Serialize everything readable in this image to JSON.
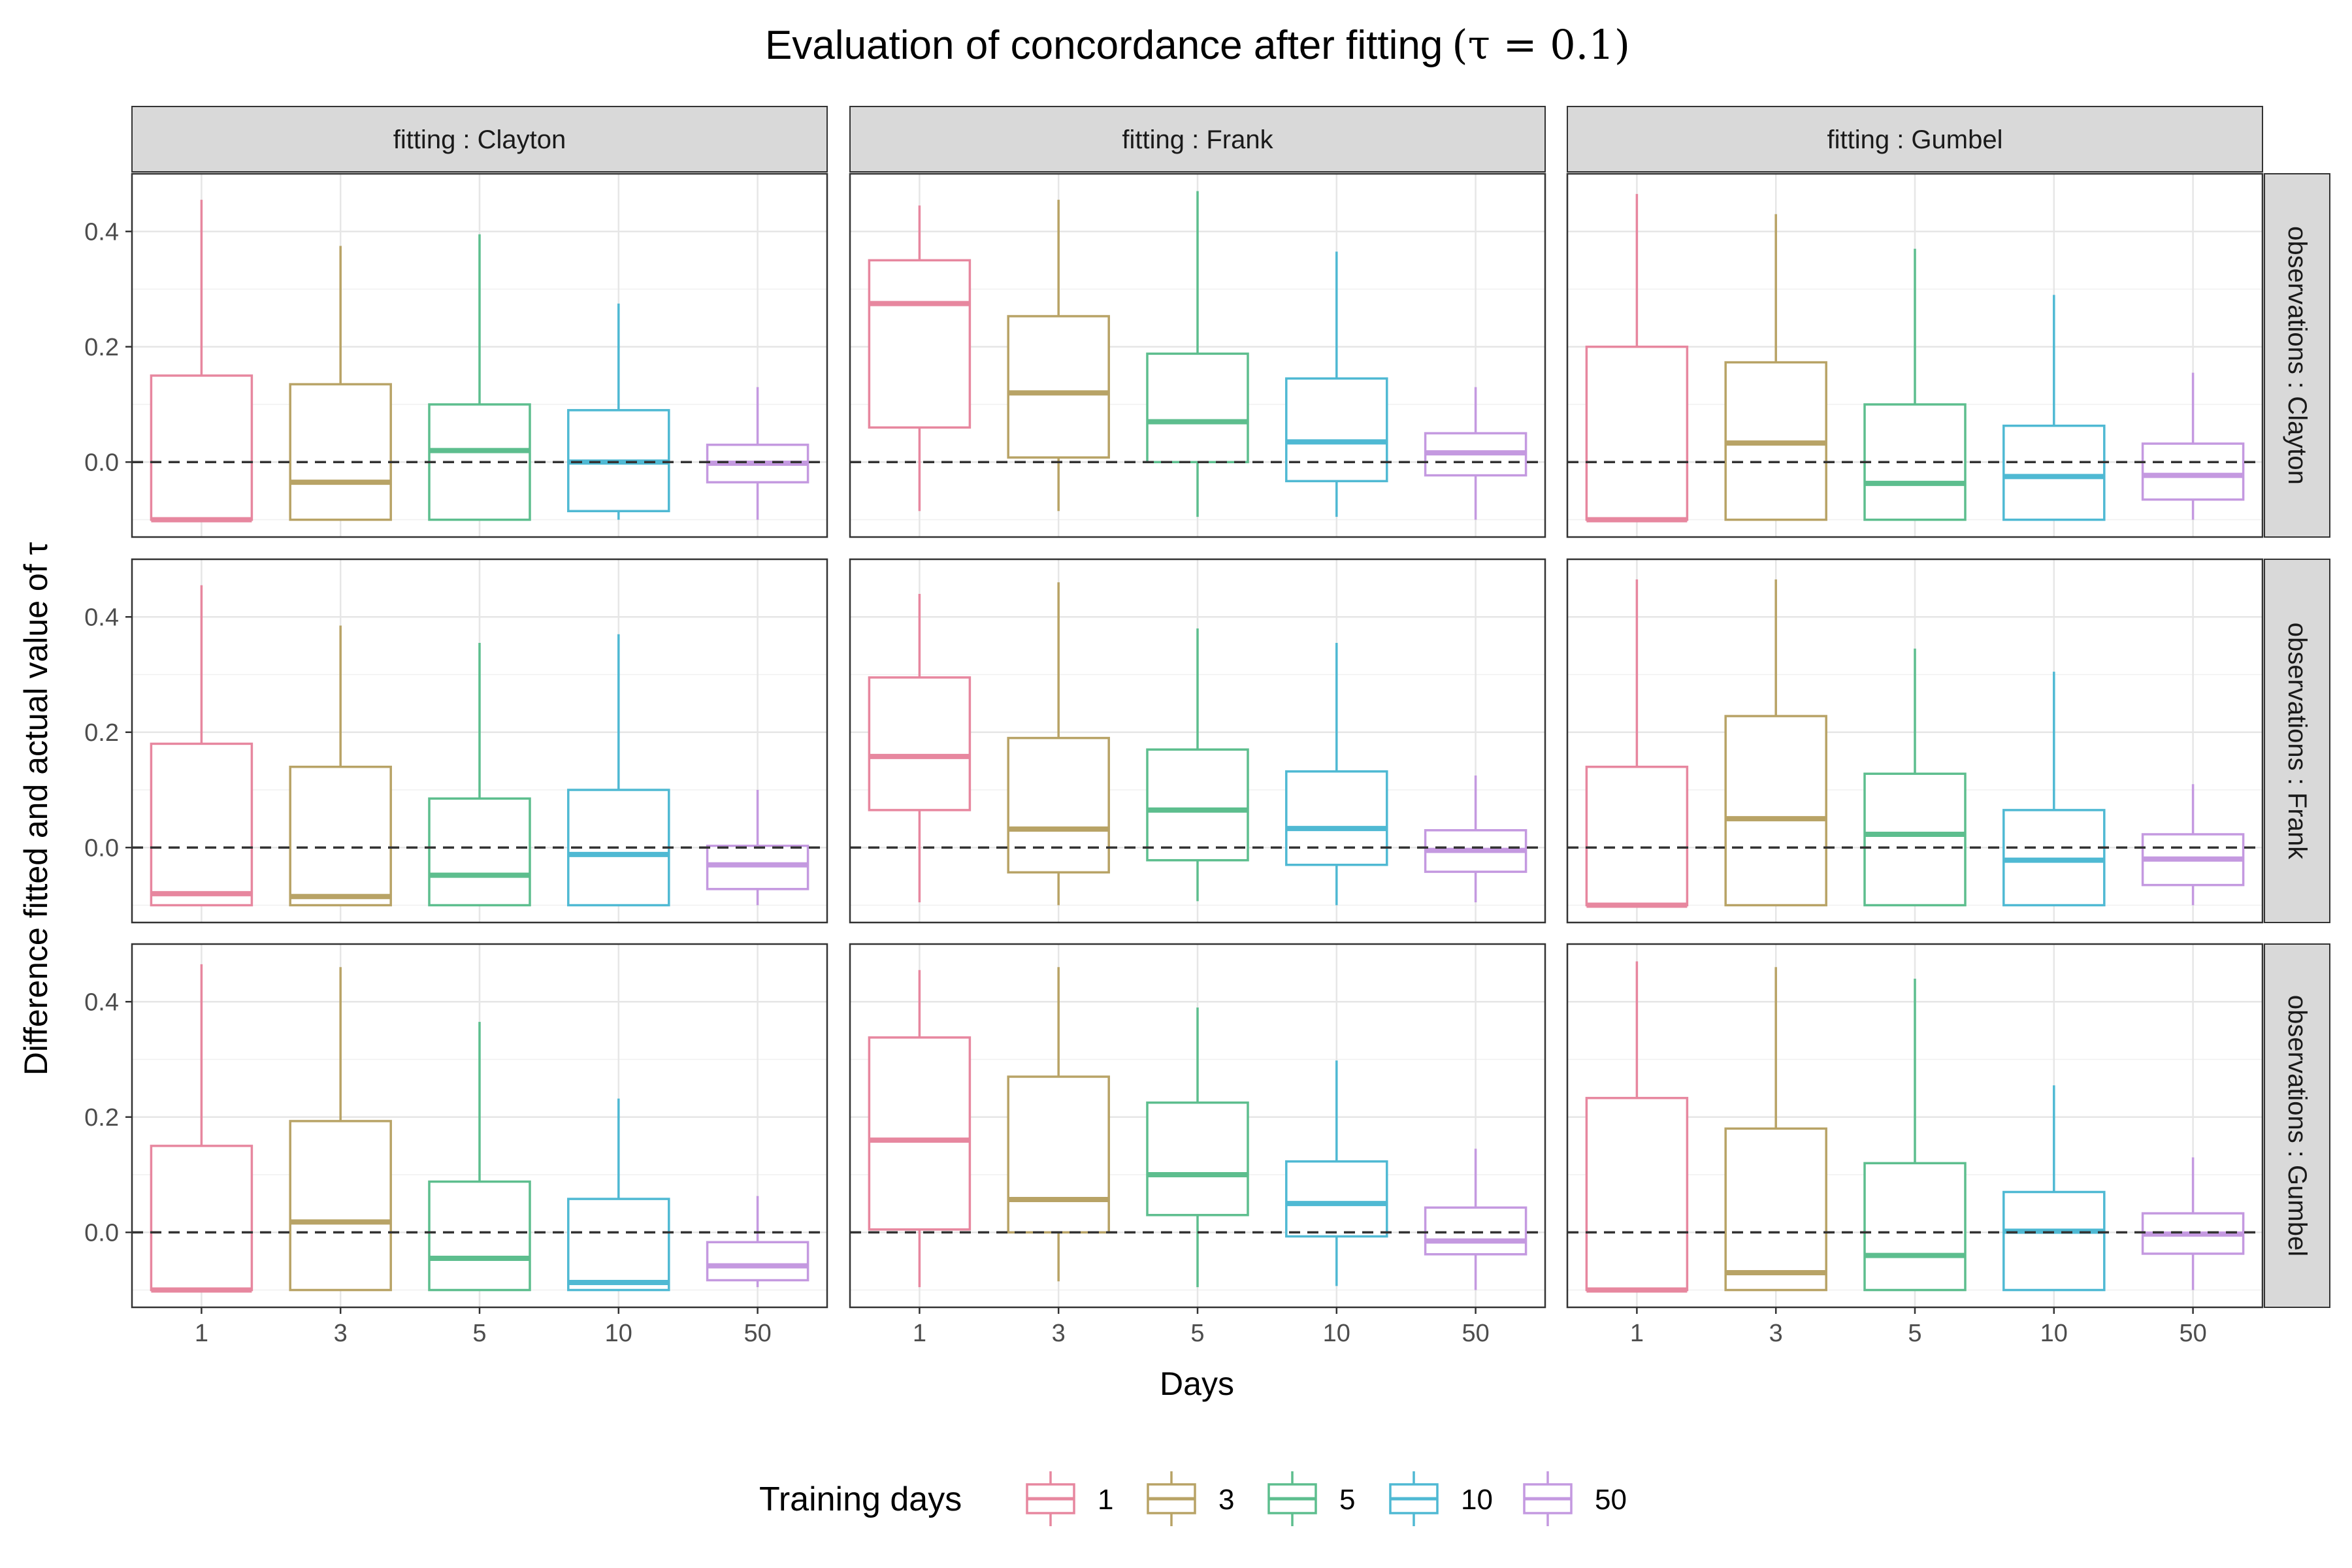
{
  "chart_data": {
    "type": "boxplot",
    "title": "Evaluation of concordance after fitting",
    "title_math": "(τ = 0.1)",
    "xlabel": "Days",
    "ylabel": "Difference fitted and actual value of τ",
    "ylim": [
      -0.13,
      0.5
    ],
    "y_ticks": [
      "0.0",
      "0.2",
      "0.4"
    ],
    "y_tick_values": [
      0.0,
      0.2,
      0.4
    ],
    "reference_line": 0.0,
    "x_categories": [
      "1",
      "3",
      "5",
      "10",
      "50"
    ],
    "col_facets": [
      "fitting : Clayton",
      "fitting : Frank",
      "fitting : Gumbel"
    ],
    "row_facets": [
      "observations : Clayton",
      "observations : Frank",
      "observations : Gumbel"
    ],
    "legend": {
      "title": "Training days",
      "position": "bottom",
      "items": [
        {
          "label": "1",
          "color": "#E7879F"
        },
        {
          "label": "3",
          "color": "#B8A366"
        },
        {
          "label": "5",
          "color": "#5DBE8E"
        },
        {
          "label": "10",
          "color": "#4FB9D3"
        },
        {
          "label": "50",
          "color": "#C499E0"
        }
      ]
    },
    "grid": true,
    "panels": [
      {
        "row": 0,
        "col": 0,
        "boxes": [
          {
            "min": -0.1,
            "q1": -0.1,
            "median": -0.1,
            "q3": 0.15,
            "max": 0.455
          },
          {
            "min": -0.1,
            "q1": -0.1,
            "median": -0.035,
            "q3": 0.135,
            "max": 0.375
          },
          {
            "min": -0.1,
            "q1": -0.1,
            "median": 0.02,
            "q3": 0.1,
            "max": 0.395
          },
          {
            "min": -0.1,
            "q1": -0.085,
            "median": 0.0,
            "q3": 0.09,
            "max": 0.275
          },
          {
            "min": -0.1,
            "q1": -0.035,
            "median": -0.002,
            "q3": 0.03,
            "max": 0.13
          }
        ]
      },
      {
        "row": 0,
        "col": 1,
        "boxes": [
          {
            "min": -0.085,
            "q1": 0.06,
            "median": 0.275,
            "q3": 0.35,
            "max": 0.445
          },
          {
            "min": -0.085,
            "q1": 0.008,
            "median": 0.12,
            "q3": 0.253,
            "max": 0.455
          },
          {
            "min": -0.095,
            "q1": 0.0,
            "median": 0.07,
            "q3": 0.188,
            "max": 0.47
          },
          {
            "min": -0.095,
            "q1": -0.033,
            "median": 0.035,
            "q3": 0.145,
            "max": 0.365
          },
          {
            "min": -0.1,
            "q1": -0.023,
            "median": 0.016,
            "q3": 0.05,
            "max": 0.13
          }
        ]
      },
      {
        "row": 0,
        "col": 2,
        "boxes": [
          {
            "min": -0.1,
            "q1": -0.1,
            "median": -0.1,
            "q3": 0.2,
            "max": 0.465
          },
          {
            "min": -0.1,
            "q1": -0.1,
            "median": 0.033,
            "q3": 0.173,
            "max": 0.43
          },
          {
            "min": -0.1,
            "q1": -0.1,
            "median": -0.037,
            "q3": 0.1,
            "max": 0.37
          },
          {
            "min": -0.1,
            "q1": -0.1,
            "median": -0.025,
            "q3": 0.063,
            "max": 0.29
          },
          {
            "min": -0.1,
            "q1": -0.065,
            "median": -0.023,
            "q3": 0.032,
            "max": 0.155
          }
        ]
      },
      {
        "row": 1,
        "col": 0,
        "boxes": [
          {
            "min": -0.1,
            "q1": -0.1,
            "median": -0.08,
            "q3": 0.18,
            "max": 0.455
          },
          {
            "min": -0.1,
            "q1": -0.1,
            "median": -0.085,
            "q3": 0.14,
            "max": 0.385
          },
          {
            "min": -0.1,
            "q1": -0.1,
            "median": -0.048,
            "q3": 0.085,
            "max": 0.355
          },
          {
            "min": -0.1,
            "q1": -0.1,
            "median": -0.012,
            "q3": 0.1,
            "max": 0.37
          },
          {
            "min": -0.1,
            "q1": -0.072,
            "median": -0.03,
            "q3": 0.003,
            "max": 0.1
          }
        ]
      },
      {
        "row": 1,
        "col": 1,
        "boxes": [
          {
            "min": -0.095,
            "q1": 0.065,
            "median": 0.158,
            "q3": 0.295,
            "max": 0.44
          },
          {
            "min": -0.1,
            "q1": -0.043,
            "median": 0.032,
            "q3": 0.19,
            "max": 0.46
          },
          {
            "min": -0.093,
            "q1": -0.022,
            "median": 0.065,
            "q3": 0.17,
            "max": 0.38
          },
          {
            "min": -0.1,
            "q1": -0.03,
            "median": 0.033,
            "q3": 0.132,
            "max": 0.355
          },
          {
            "min": -0.095,
            "q1": -0.042,
            "median": -0.005,
            "q3": 0.03,
            "max": 0.125
          }
        ]
      },
      {
        "row": 1,
        "col": 2,
        "boxes": [
          {
            "min": -0.1,
            "q1": -0.1,
            "median": -0.1,
            "q3": 0.14,
            "max": 0.465
          },
          {
            "min": -0.1,
            "q1": -0.1,
            "median": 0.05,
            "q3": 0.228,
            "max": 0.465
          },
          {
            "min": -0.1,
            "q1": -0.1,
            "median": 0.023,
            "q3": 0.128,
            "max": 0.345
          },
          {
            "min": -0.1,
            "q1": -0.1,
            "median": -0.022,
            "q3": 0.065,
            "max": 0.305
          },
          {
            "min": -0.1,
            "q1": -0.065,
            "median": -0.02,
            "q3": 0.023,
            "max": 0.11
          }
        ]
      },
      {
        "row": 2,
        "col": 0,
        "boxes": [
          {
            "min": -0.1,
            "q1": -0.1,
            "median": -0.1,
            "q3": 0.15,
            "max": 0.465
          },
          {
            "min": -0.1,
            "q1": -0.1,
            "median": 0.018,
            "q3": 0.193,
            "max": 0.46
          },
          {
            "min": -0.1,
            "q1": -0.1,
            "median": -0.045,
            "q3": 0.088,
            "max": 0.365
          },
          {
            "min": -0.1,
            "q1": -0.1,
            "median": -0.087,
            "q3": 0.058,
            "max": 0.232
          },
          {
            "min": -0.095,
            "q1": -0.083,
            "median": -0.058,
            "q3": -0.017,
            "max": 0.063
          }
        ]
      },
      {
        "row": 2,
        "col": 1,
        "boxes": [
          {
            "min": -0.095,
            "q1": 0.005,
            "median": 0.16,
            "q3": 0.338,
            "max": 0.455
          },
          {
            "min": -0.085,
            "q1": 0.0,
            "median": 0.057,
            "q3": 0.27,
            "max": 0.46
          },
          {
            "min": -0.095,
            "q1": 0.03,
            "median": 0.1,
            "q3": 0.225,
            "max": 0.39
          },
          {
            "min": -0.093,
            "q1": -0.007,
            "median": 0.05,
            "q3": 0.123,
            "max": 0.298
          },
          {
            "min": -0.1,
            "q1": -0.038,
            "median": -0.015,
            "q3": 0.043,
            "max": 0.145
          }
        ]
      },
      {
        "row": 2,
        "col": 2,
        "boxes": [
          {
            "min": -0.1,
            "q1": -0.1,
            "median": -0.1,
            "q3": 0.233,
            "max": 0.47
          },
          {
            "min": -0.1,
            "q1": -0.1,
            "median": -0.07,
            "q3": 0.18,
            "max": 0.46
          },
          {
            "min": -0.1,
            "q1": -0.1,
            "median": -0.04,
            "q3": 0.12,
            "max": 0.44
          },
          {
            "min": -0.1,
            "q1": -0.1,
            "median": 0.002,
            "q3": 0.07,
            "max": 0.255
          },
          {
            "min": -0.1,
            "q1": -0.037,
            "median": -0.003,
            "q3": 0.033,
            "max": 0.13
          }
        ]
      }
    ]
  }
}
